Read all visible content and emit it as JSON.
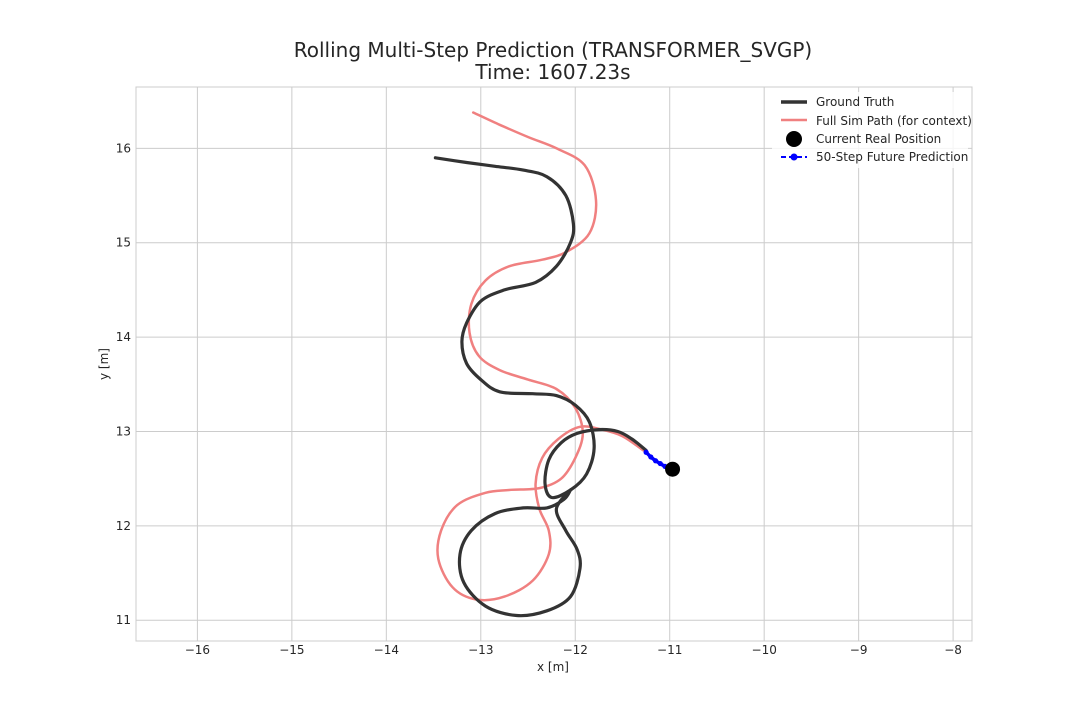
{
  "chart_data": {
    "type": "line",
    "title": "Rolling Multi-Step Prediction (TRANSFORMER_SVGP)",
    "subtitle": "Time: 1607.23s",
    "xlabel": "x [m]",
    "ylabel": "y [m]",
    "xlim": [
      -16.65,
      -7.8
    ],
    "ylim": [
      10.78,
      16.65
    ],
    "xticks": [
      -16,
      -15,
      -14,
      -13,
      -12,
      -11,
      -10,
      -9,
      -8
    ],
    "xtick_labels": [
      "−16",
      "−15",
      "−14",
      "−13",
      "−12",
      "−11",
      "−10",
      "−9",
      "−8"
    ],
    "yticks": [
      11,
      12,
      13,
      14,
      15,
      16
    ],
    "ytick_labels": [
      "11",
      "12",
      "13",
      "14",
      "15",
      "16"
    ],
    "grid": true,
    "legend_position": "top-right",
    "legend": [
      {
        "label": "Ground Truth",
        "style": "thick-line",
        "color": "#333333"
      },
      {
        "label": "Full Sim Path (for context)",
        "style": "line",
        "color": "#f08080"
      },
      {
        "label": "Current Real Position",
        "style": "marker",
        "color": "#000000"
      },
      {
        "label": "50-Step Future Prediction",
        "style": "dashed-marker",
        "color": "#0000ff"
      }
    ],
    "series": [
      {
        "name": "Ground Truth",
        "color": "#333333",
        "points": [
          [
            -13.48,
            15.9
          ],
          [
            -13.15,
            15.85
          ],
          [
            -12.85,
            15.81
          ],
          [
            -12.55,
            15.77
          ],
          [
            -12.3,
            15.7
          ],
          [
            -12.1,
            15.5
          ],
          [
            -12.02,
            15.2
          ],
          [
            -12.05,
            15.0
          ],
          [
            -12.2,
            14.75
          ],
          [
            -12.42,
            14.58
          ],
          [
            -12.75,
            14.5
          ],
          [
            -13.0,
            14.38
          ],
          [
            -13.15,
            14.15
          ],
          [
            -13.2,
            13.95
          ],
          [
            -13.15,
            13.72
          ],
          [
            -13.0,
            13.55
          ],
          [
            -12.8,
            13.42
          ],
          [
            -12.45,
            13.4
          ],
          [
            -12.2,
            13.38
          ],
          [
            -12.0,
            13.28
          ],
          [
            -11.85,
            13.1
          ],
          [
            -11.8,
            12.82
          ],
          [
            -11.88,
            12.55
          ],
          [
            -12.05,
            12.38
          ],
          [
            -12.25,
            12.3
          ],
          [
            -12.32,
            12.45
          ],
          [
            -12.28,
            12.7
          ],
          [
            -12.15,
            12.88
          ],
          [
            -11.98,
            12.98
          ],
          [
            -11.75,
            13.02
          ],
          [
            -11.55,
            13.0
          ],
          [
            -11.4,
            12.92
          ],
          [
            -11.25,
            12.8
          ]
        ]
      },
      {
        "name": "Ground Truth (lower loop)",
        "color": "#333333",
        "points": [
          [
            -12.05,
            12.38
          ],
          [
            -12.2,
            12.18
          ],
          [
            -12.1,
            11.95
          ],
          [
            -11.98,
            11.75
          ],
          [
            -11.95,
            11.55
          ],
          [
            -12.05,
            11.25
          ],
          [
            -12.3,
            11.1
          ],
          [
            -12.62,
            11.05
          ],
          [
            -12.95,
            11.15
          ],
          [
            -13.18,
            11.4
          ],
          [
            -13.22,
            11.7
          ],
          [
            -13.1,
            11.95
          ],
          [
            -12.85,
            12.13
          ],
          [
            -12.55,
            12.19
          ],
          [
            -12.3,
            12.19
          ],
          [
            -12.12,
            12.28
          ],
          [
            -12.05,
            12.38
          ]
        ]
      },
      {
        "name": "Full Sim Path",
        "color": "#f08080",
        "points": [
          [
            -13.08,
            16.38
          ],
          [
            -12.8,
            16.25
          ],
          [
            -12.5,
            16.12
          ],
          [
            -12.2,
            16.0
          ],
          [
            -11.9,
            15.82
          ],
          [
            -11.78,
            15.45
          ],
          [
            -11.85,
            15.1
          ],
          [
            -12.1,
            14.9
          ],
          [
            -12.35,
            14.82
          ],
          [
            -12.7,
            14.75
          ],
          [
            -12.95,
            14.6
          ],
          [
            -13.1,
            14.35
          ],
          [
            -13.12,
            14.05
          ],
          [
            -13.02,
            13.8
          ],
          [
            -12.8,
            13.65
          ],
          [
            -12.5,
            13.55
          ],
          [
            -12.2,
            13.45
          ],
          [
            -12.0,
            13.25
          ],
          [
            -11.92,
            12.98
          ],
          [
            -12.0,
            12.72
          ],
          [
            -12.15,
            12.5
          ],
          [
            -12.38,
            12.4
          ],
          [
            -12.7,
            12.38
          ],
          [
            -12.95,
            12.35
          ],
          [
            -13.25,
            12.22
          ],
          [
            -13.42,
            11.95
          ],
          [
            -13.45,
            11.65
          ],
          [
            -13.3,
            11.35
          ],
          [
            -13.05,
            11.22
          ],
          [
            -12.75,
            11.25
          ],
          [
            -12.45,
            11.42
          ],
          [
            -12.28,
            11.7
          ],
          [
            -12.28,
            11.95
          ],
          [
            -12.38,
            12.18
          ],
          [
            -12.42,
            12.45
          ],
          [
            -12.35,
            12.72
          ],
          [
            -12.18,
            12.92
          ],
          [
            -11.95,
            13.05
          ],
          [
            -11.72,
            13.02
          ],
          [
            -11.5,
            12.95
          ],
          [
            -11.28,
            12.8
          ]
        ]
      },
      {
        "name": "50-Step Future Prediction",
        "color": "#0000ff",
        "points": [
          [
            -11.25,
            12.78
          ],
          [
            -11.2,
            12.73
          ],
          [
            -11.15,
            12.69
          ],
          [
            -11.1,
            12.66
          ],
          [
            -11.05,
            12.63
          ],
          [
            -11.0,
            12.61
          ],
          [
            -10.97,
            12.6
          ]
        ]
      }
    ],
    "current_position": {
      "x": -10.97,
      "y": 12.6
    }
  }
}
